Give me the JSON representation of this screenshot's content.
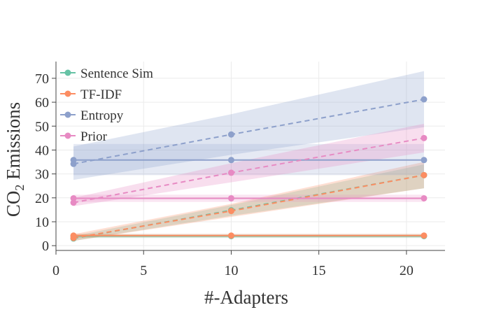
{
  "chart_data": {
    "type": "line",
    "title": "",
    "xlabel": "#-Adapters",
    "ylabel": "CO",
    "ylabel_subscript": "2",
    "ylabel_suffix": " Emissions",
    "xlim": [
      0,
      22.2
    ],
    "ylim": [
      -2,
      77
    ],
    "x_ticks": [
      0,
      5,
      10,
      15,
      20
    ],
    "y_ticks": [
      0,
      10,
      20,
      30,
      40,
      50,
      60,
      70
    ],
    "legend_position": "top-left",
    "grid": true,
    "series": [
      {
        "name": "Sentence Sim",
        "color": "#66c2a5",
        "flat": {
          "x": [
            1,
            10,
            21
          ],
          "y": [
            4.0,
            4.0,
            4.0
          ],
          "band": [
            [
              3.2,
              4.8
            ],
            [
              3.2,
              4.8
            ],
            [
              3.2,
              4.8
            ]
          ]
        },
        "trend": {
          "x": [
            1,
            10,
            21
          ],
          "y": [
            3.0,
            14.8,
            29.5
          ],
          "band": [
            [
              2.0,
              4.0
            ],
            [
              12.5,
              17.0
            ],
            [
              24.0,
              34.0
            ]
          ]
        }
      },
      {
        "name": "TF-IDF",
        "color": "#fc8d62",
        "flat": {
          "x": [
            1,
            10,
            21
          ],
          "y": [
            4.2,
            4.2,
            4.2
          ],
          "band": [
            [
              3.4,
              5.0
            ],
            [
              3.4,
              5.0
            ],
            [
              3.4,
              5.0
            ]
          ]
        },
        "trend": {
          "x": [
            1,
            10,
            21
          ],
          "y": [
            3.2,
            14.5,
            29.5
          ],
          "band": [
            [
              2.0,
              4.8
            ],
            [
              12.0,
              17.5
            ],
            [
              24.0,
              35.0
            ]
          ]
        }
      },
      {
        "name": "Entropy",
        "color": "#8da0cb",
        "flat": {
          "x": [
            1,
            10,
            21
          ],
          "y": [
            35.8,
            35.8,
            35.8
          ],
          "band": [
            [
              29.5,
              42.5
            ],
            [
              29.5,
              42.5
            ],
            [
              29.5,
              42.5
            ]
          ]
        },
        "trend": {
          "x": [
            1,
            10,
            21
          ],
          "y": [
            34.2,
            46.5,
            61.2
          ],
          "band": [
            [
              27.5,
              41.5
            ],
            [
              38.0,
              55.0
            ],
            [
              49.5,
              73.0
            ]
          ]
        }
      },
      {
        "name": "Prior",
        "color": "#e78ac3",
        "flat": {
          "x": [
            1,
            10,
            21
          ],
          "y": [
            19.8,
            19.8,
            19.8
          ],
          "band": [
            [
              18.3,
              21.3
            ],
            [
              18.3,
              21.3
            ],
            [
              18.3,
              21.3
            ]
          ]
        },
        "trend": {
          "x": [
            1,
            10,
            21
          ],
          "y": [
            18.0,
            30.5,
            45.0
          ],
          "band": [
            [
              16.5,
              20.0
            ],
            [
              26.5,
              34.5
            ],
            [
              39.0,
              51.0
            ]
          ]
        }
      }
    ]
  }
}
